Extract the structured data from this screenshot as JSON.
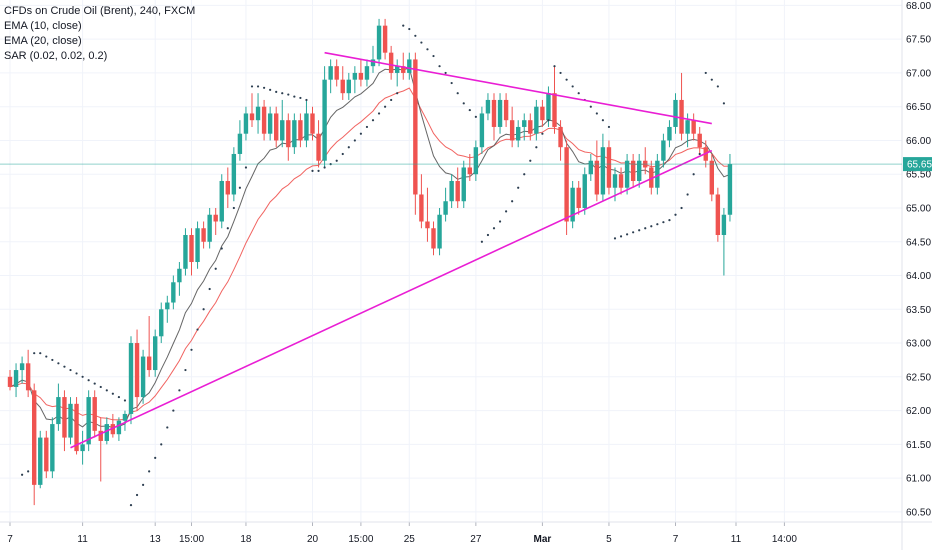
{
  "legend": {
    "title": "CFDs on Crude Oil (Brent), 240, FXCM",
    "ema10": "EMA (10, close)",
    "ema20": "EMA (20, close)",
    "sar": "SAR (0.02, 0.02, 0.2)"
  },
  "colors": {
    "up": "#26a69a",
    "down": "#ef5350",
    "ema10": "#555555",
    "ema20": "#ef5350",
    "sar": "#2c3e50",
    "trendline": "#e91ed4",
    "price_tag": "#26a69a",
    "grid": "#f0f3fa"
  },
  "chart_data": {
    "type": "candlestick",
    "ylim": [
      60.35,
      68.08
    ],
    "y_ticks": [
      "68.00",
      "67.50",
      "67.00",
      "66.50",
      "66.00",
      "65.50",
      "65.00",
      "64.50",
      "64.00",
      "63.50",
      "63.00",
      "62.50",
      "62.00",
      "61.50",
      "61.00",
      "60.50"
    ],
    "x_ticks": [
      {
        "label": "7",
        "i": 0
      },
      {
        "label": "11",
        "i": 12
      },
      {
        "label": "13",
        "i": 24
      },
      {
        "label": "15:00",
        "i": 30
      },
      {
        "label": "18",
        "i": 39
      },
      {
        "label": "20",
        "i": 50
      },
      {
        "label": "15:00",
        "i": 58
      },
      {
        "label": "25",
        "i": 66
      },
      {
        "label": "27",
        "i": 77
      },
      {
        "label": "Mar",
        "i": 88,
        "bold": true
      },
      {
        "label": "5",
        "i": 99
      },
      {
        "label": "7",
        "i": 110
      },
      {
        "label": "11",
        "i": 120
      },
      {
        "label": "14:00",
        "i": 128
      }
    ],
    "last_price": "65.65",
    "candles": [
      [
        62.5,
        62.6,
        62.3,
        62.35
      ],
      [
        62.35,
        62.7,
        62.2,
        62.6
      ],
      [
        62.6,
        62.8,
        62.4,
        62.7
      ],
      [
        62.7,
        62.9,
        62.2,
        62.3
      ],
      [
        62.3,
        62.4,
        60.6,
        60.9
      ],
      [
        60.9,
        61.7,
        60.85,
        61.6
      ],
      [
        61.6,
        61.7,
        61.0,
        61.1
      ],
      [
        61.1,
        61.9,
        61.0,
        61.8
      ],
      [
        61.8,
        62.4,
        61.7,
        62.2
      ],
      [
        62.2,
        62.3,
        61.4,
        61.6
      ],
      [
        61.6,
        62.2,
        61.5,
        62.1
      ],
      [
        62.1,
        62.2,
        61.35,
        61.4
      ],
      [
        61.4,
        61.7,
        61.2,
        61.5
      ],
      [
        61.5,
        62.3,
        61.4,
        62.2
      ],
      [
        62.2,
        62.3,
        61.6,
        61.7
      ],
      [
        61.7,
        61.9,
        60.95,
        61.55
      ],
      [
        61.55,
        61.9,
        61.5,
        61.8
      ],
      [
        61.8,
        61.95,
        61.6,
        61.65
      ],
      [
        61.65,
        61.9,
        61.55,
        61.85
      ],
      [
        61.85,
        62.0,
        61.7,
        61.95
      ],
      [
        61.95,
        63.1,
        61.8,
        63.0
      ],
      [
        63.0,
        63.2,
        62.0,
        62.2
      ],
      [
        62.2,
        62.9,
        62.1,
        62.8
      ],
      [
        62.8,
        63.4,
        62.5,
        62.6
      ],
      [
        62.6,
        63.2,
        62.5,
        63.1
      ],
      [
        63.1,
        63.6,
        63.0,
        63.5
      ],
      [
        63.5,
        63.7,
        63.3,
        63.6
      ],
      [
        63.6,
        64.0,
        63.5,
        63.9
      ],
      [
        63.9,
        64.2,
        63.7,
        64.1
      ],
      [
        64.1,
        64.7,
        64.0,
        64.6
      ],
      [
        64.6,
        64.7,
        64.0,
        64.2
      ],
      [
        64.2,
        64.8,
        64.1,
        64.7
      ],
      [
        64.7,
        64.8,
        64.4,
        64.5
      ],
      [
        64.5,
        65.0,
        64.4,
        64.9
      ],
      [
        64.9,
        65.0,
        64.6,
        64.8
      ],
      [
        64.8,
        65.5,
        64.7,
        65.4
      ],
      [
        65.4,
        65.6,
        65.0,
        65.2
      ],
      [
        65.2,
        65.9,
        65.1,
        65.8
      ],
      [
        65.8,
        66.3,
        65.7,
        66.1
      ],
      [
        66.1,
        66.5,
        66.0,
        66.4
      ],
      [
        66.4,
        66.7,
        66.2,
        66.3
      ],
      [
        66.3,
        66.7,
        66.1,
        66.5
      ],
      [
        66.5,
        66.6,
        66.0,
        66.1
      ],
      [
        66.1,
        66.5,
        66.0,
        66.4
      ],
      [
        66.4,
        66.5,
        65.9,
        66.0
      ],
      [
        66.0,
        66.6,
        65.9,
        66.3
      ],
      [
        66.3,
        66.4,
        65.7,
        65.9
      ],
      [
        65.9,
        66.4,
        65.8,
        66.3
      ],
      [
        66.3,
        66.4,
        65.9,
        66.0
      ],
      [
        66.0,
        66.6,
        65.9,
        66.4
      ],
      [
        66.4,
        66.5,
        66.0,
        66.1
      ],
      [
        66.1,
        66.3,
        65.6,
        65.7
      ],
      [
        65.7,
        67.1,
        65.6,
        66.9
      ],
      [
        66.9,
        67.2,
        66.7,
        67.1
      ],
      [
        67.1,
        67.2,
        66.8,
        66.9
      ],
      [
        66.9,
        67.1,
        66.6,
        66.7
      ],
      [
        66.7,
        67.0,
        66.6,
        66.9
      ],
      [
        66.9,
        67.1,
        66.7,
        67.0
      ],
      [
        67.0,
        67.2,
        66.8,
        66.9
      ],
      [
        66.9,
        67.2,
        66.8,
        67.1
      ],
      [
        67.1,
        67.4,
        67.0,
        67.2
      ],
      [
        67.2,
        67.8,
        67.1,
        67.7
      ],
      [
        67.7,
        67.8,
        67.2,
        67.3
      ],
      [
        67.3,
        67.4,
        66.9,
        67.0
      ],
      [
        67.0,
        67.2,
        66.8,
        67.1
      ],
      [
        67.1,
        67.3,
        66.9,
        67.0
      ],
      [
        67.0,
        67.3,
        66.9,
        67.2
      ],
      [
        67.2,
        67.3,
        64.9,
        65.2
      ],
      [
        65.2,
        65.5,
        64.7,
        64.8
      ],
      [
        64.8,
        65.3,
        64.5,
        64.7
      ],
      [
        64.7,
        64.8,
        64.3,
        64.4
      ],
      [
        64.4,
        65.0,
        64.3,
        64.9
      ],
      [
        64.9,
        65.3,
        64.8,
        65.1
      ],
      [
        65.1,
        65.5,
        65.0,
        65.4
      ],
      [
        65.4,
        65.6,
        65.0,
        65.1
      ],
      [
        65.1,
        65.7,
        65.0,
        65.6
      ],
      [
        65.6,
        65.8,
        65.4,
        65.5
      ],
      [
        65.5,
        66.0,
        65.4,
        65.9
      ],
      [
        65.9,
        66.5,
        65.8,
        66.4
      ],
      [
        66.4,
        66.7,
        66.3,
        66.6
      ],
      [
        66.6,
        66.7,
        66.0,
        66.2
      ],
      [
        66.2,
        66.7,
        66.1,
        66.6
      ],
      [
        66.6,
        66.7,
        66.2,
        66.3
      ],
      [
        66.3,
        66.5,
        65.9,
        66.0
      ],
      [
        66.0,
        66.3,
        65.9,
        66.2
      ],
      [
        66.2,
        66.4,
        66.0,
        66.3
      ],
      [
        66.3,
        66.4,
        66.0,
        66.1
      ],
      [
        66.1,
        66.6,
        66.0,
        66.5
      ],
      [
        66.5,
        66.6,
        66.2,
        66.3
      ],
      [
        66.3,
        66.8,
        66.2,
        66.7
      ],
      [
        66.7,
        67.1,
        66.1,
        66.2
      ],
      [
        66.2,
        66.3,
        65.7,
        65.9
      ],
      [
        65.9,
        66.0,
        64.6,
        64.8
      ],
      [
        64.8,
        65.4,
        64.7,
        65.3
      ],
      [
        65.3,
        65.4,
        64.9,
        65.0
      ],
      [
        65.0,
        65.6,
        64.9,
        65.5
      ],
      [
        65.5,
        65.8,
        65.4,
        65.7
      ],
      [
        65.7,
        66.0,
        65.1,
        65.2
      ],
      [
        65.2,
        66.1,
        65.1,
        65.9
      ],
      [
        65.9,
        66.0,
        65.2,
        65.3
      ],
      [
        65.3,
        65.6,
        65.1,
        65.5
      ],
      [
        65.5,
        65.6,
        65.2,
        65.3
      ],
      [
        65.3,
        65.8,
        65.2,
        65.7
      ],
      [
        65.7,
        65.8,
        65.3,
        65.4
      ],
      [
        65.4,
        65.8,
        65.3,
        65.7
      ],
      [
        65.7,
        65.9,
        65.5,
        65.6
      ],
      [
        65.6,
        65.7,
        65.2,
        65.3
      ],
      [
        65.3,
        65.8,
        65.2,
        65.7
      ],
      [
        65.7,
        66.1,
        65.6,
        66.0
      ],
      [
        66.0,
        66.3,
        65.9,
        66.2
      ],
      [
        66.2,
        66.7,
        66.1,
        66.6
      ],
      [
        66.6,
        67.0,
        66.0,
        66.1
      ],
      [
        66.1,
        66.4,
        65.9,
        66.3
      ],
      [
        66.3,
        66.4,
        66.0,
        66.1
      ],
      [
        66.1,
        66.2,
        65.8,
        65.9
      ],
      [
        65.9,
        66.0,
        65.6,
        65.7
      ],
      [
        65.7,
        65.8,
        65.1,
        65.2
      ],
      [
        65.2,
        65.3,
        64.5,
        64.6
      ],
      [
        64.6,
        65.0,
        64.0,
        64.9
      ],
      [
        64.9,
        65.8,
        64.8,
        65.65
      ]
    ],
    "sar": [
      [
        2,
        61.05
      ],
      [
        3,
        61.1
      ],
      [
        4,
        62.85
      ],
      [
        5,
        62.85
      ],
      [
        6,
        62.8
      ],
      [
        7,
        62.75
      ],
      [
        8,
        62.7
      ],
      [
        9,
        62.65
      ],
      [
        10,
        62.6
      ],
      [
        11,
        62.55
      ],
      [
        12,
        62.5
      ],
      [
        13,
        62.45
      ],
      [
        14,
        62.4
      ],
      [
        15,
        62.35
      ],
      [
        16,
        62.3
      ],
      [
        17,
        62.25
      ],
      [
        18,
        62.2
      ],
      [
        19,
        62.15
      ],
      [
        20,
        60.6
      ],
      [
        21,
        60.75
      ],
      [
        22,
        60.9
      ],
      [
        23,
        61.1
      ],
      [
        24,
        61.3
      ],
      [
        25,
        61.5
      ],
      [
        26,
        61.75
      ],
      [
        27,
        62.0
      ],
      [
        28,
        62.3
      ],
      [
        29,
        62.6
      ],
      [
        30,
        62.9
      ],
      [
        31,
        63.2
      ],
      [
        32,
        63.5
      ],
      [
        33,
        63.8
      ],
      [
        34,
        64.1
      ],
      [
        35,
        64.4
      ],
      [
        36,
        64.7
      ],
      [
        37,
        65.0
      ],
      [
        38,
        65.3
      ],
      [
        39,
        65.6
      ],
      [
        40,
        66.8
      ],
      [
        41,
        66.8
      ],
      [
        42,
        66.78
      ],
      [
        43,
        66.75
      ],
      [
        44,
        66.72
      ],
      [
        45,
        66.7
      ],
      [
        46,
        66.68
      ],
      [
        47,
        66.65
      ],
      [
        48,
        66.63
      ],
      [
        49,
        66.6
      ],
      [
        50,
        65.55
      ],
      [
        51,
        65.55
      ],
      [
        52,
        65.6
      ],
      [
        53,
        65.65
      ],
      [
        54,
        65.7
      ],
      [
        55,
        65.8
      ],
      [
        56,
        65.9
      ],
      [
        57,
        66.0
      ],
      [
        58,
        66.1
      ],
      [
        59,
        66.2
      ],
      [
        60,
        66.3
      ],
      [
        61,
        66.4
      ],
      [
        62,
        66.5
      ],
      [
        63,
        66.6
      ],
      [
        64,
        66.7
      ],
      [
        65,
        67.7
      ],
      [
        66,
        67.65
      ],
      [
        67,
        67.55
      ],
      [
        68,
        67.45
      ],
      [
        69,
        67.35
      ],
      [
        70,
        67.25
      ],
      [
        71,
        67.1
      ],
      [
        72,
        67.0
      ],
      [
        73,
        66.85
      ],
      [
        74,
        66.7
      ],
      [
        75,
        66.55
      ],
      [
        76,
        66.45
      ],
      [
        77,
        66.35
      ],
      [
        78,
        64.5
      ],
      [
        79,
        64.6
      ],
      [
        80,
        64.7
      ],
      [
        81,
        64.8
      ],
      [
        82,
        64.95
      ],
      [
        83,
        65.1
      ],
      [
        84,
        65.3
      ],
      [
        85,
        65.5
      ],
      [
        86,
        65.7
      ],
      [
        87,
        65.9
      ],
      [
        88,
        66.1
      ],
      [
        89,
        66.3
      ],
      [
        90,
        67.1
      ],
      [
        91,
        67.0
      ],
      [
        92,
        66.9
      ],
      [
        93,
        66.8
      ],
      [
        94,
        66.7
      ],
      [
        95,
        66.6
      ],
      [
        96,
        66.5
      ],
      [
        97,
        66.4
      ],
      [
        98,
        66.3
      ],
      [
        99,
        66.2
      ],
      [
        100,
        64.55
      ],
      [
        101,
        64.58
      ],
      [
        102,
        64.61
      ],
      [
        103,
        64.64
      ],
      [
        104,
        64.67
      ],
      [
        105,
        64.7
      ],
      [
        106,
        64.73
      ],
      [
        107,
        64.76
      ],
      [
        108,
        64.79
      ],
      [
        109,
        64.82
      ],
      [
        110,
        64.9
      ],
      [
        111,
        65.0
      ],
      [
        112,
        65.2
      ],
      [
        113,
        65.5
      ],
      [
        114,
        65.8
      ],
      [
        115,
        67.0
      ],
      [
        116,
        66.9
      ],
      [
        117,
        66.8
      ],
      [
        118,
        66.55
      ]
    ],
    "trendlines": [
      {
        "from": [
          10,
          61.45
        ],
        "to": [
          116,
          65.85
        ]
      },
      {
        "from": [
          52,
          67.3
        ],
        "to": [
          116,
          66.25
        ]
      }
    ]
  }
}
